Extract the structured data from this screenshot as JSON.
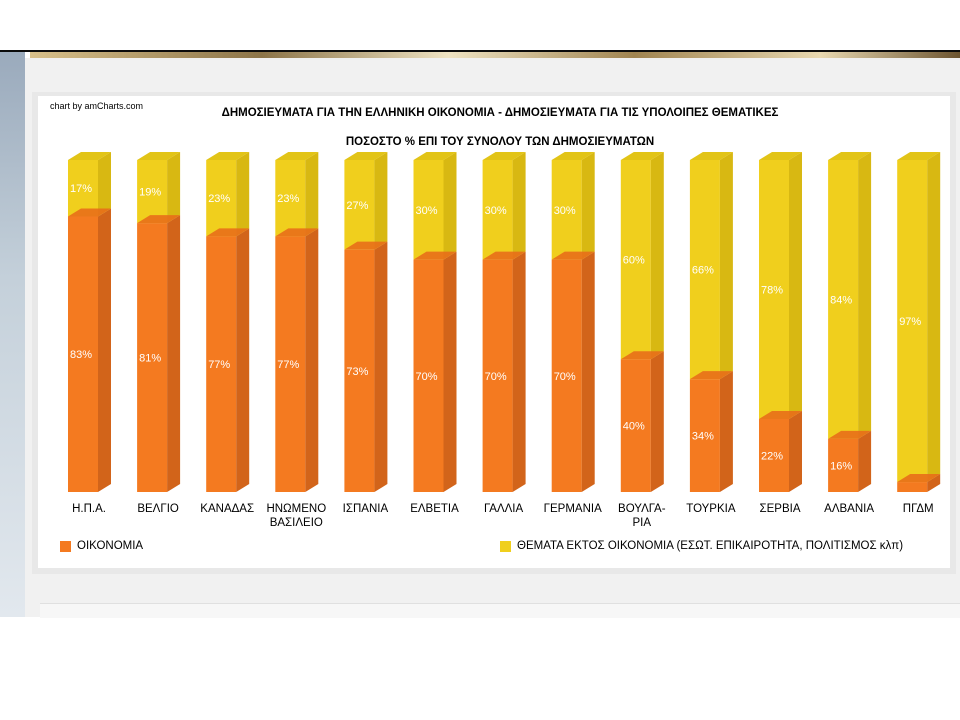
{
  "credit": "chart by amCharts.com",
  "title": "ΔΗΜΟΣΙΕΥΜΑΤΑ ΓΙΑ ΤΗΝ ΕΛΛΗΝΙΚΗ ΟΙΚΟΝΟΜΙΑ - ΔΗΜΟΣΙΕΥΜΑΤΑ ΓΙΑ ΤΙΣ ΥΠΟΛΟΙΠΕΣ ΘΕΜΑΤΙΚΕΣ",
  "subtitle": "ΠΟΣΟΣΤΟ % ΕΠΙ ΤΟΥ ΣΥΝΟΛΟΥ ΤΩΝ ΔΗΜΟΣΙΕΥΜΑΤΩΝ",
  "legend": {
    "economy": "ΟΙΚΟΝΟΜΙΑ",
    "other": "ΘΕΜΑΤΑ ΕΚΤΟΣ ΟΙΚΟΝΟΜΙΑ (ΕΣΩΤ. ΕΠΙΚΑΙΡΟΤΗΤΑ, ΠΟΛΙΤΙΣΜΟΣ κλπ)"
  },
  "chart_data": {
    "type": "bar",
    "stacked": true,
    "three_d": true,
    "categories": [
      "Η.Π.Α.",
      "ΒΕΛΓΙΟ",
      "ΚΑΝΑΔΑΣ",
      "ΗΝΩΜΕΝΟ ΒΑΣΙΛΕΙΟ",
      "ΙΣΠΑΝΙΑ",
      "ΕΛΒΕΤΙΑ",
      "ΓΑΛΛΙΑ",
      "ΓΕΡΜΑΝΙΑ",
      "ΒΟΥΛΓΑ- ΡΙΑ",
      "ΤΟΥΡΚΙΑ",
      "ΣΕΡΒΙΑ",
      "ΑΛΒΑΝΙΑ",
      "ΠΓΔΜ"
    ],
    "series": [
      {
        "name": "ΟΙΚΟΝΟΜΙΑ",
        "values": [
          83,
          81,
          77,
          77,
          73,
          70,
          70,
          70,
          40,
          34,
          22,
          16,
          3
        ],
        "labels": [
          "83%",
          "81%",
          "77%",
          "77%",
          "73%",
          "70%",
          "70%",
          "70%",
          "40%",
          "34%",
          "22%",
          "16%",
          ""
        ]
      },
      {
        "name": "ΘΕΜΑΤΑ ΕΚΤΟΣ ΟΙΚΟΝΟΜΙΑ (ΕΣΩΤ. ΕΠΙΚΑΙΡΟΤΗΤΑ, ΠΟΛΙΤΙΣΜΟΣ κλπ)",
        "values": [
          17,
          19,
          23,
          23,
          27,
          30,
          30,
          30,
          60,
          66,
          78,
          84,
          97
        ],
        "labels": [
          "17%",
          "19%",
          "23%",
          "23%",
          "27%",
          "30%",
          "30%",
          "30%",
          "60%",
          "66%",
          "78%",
          "84%",
          "97%"
        ]
      }
    ],
    "ylim": [
      0,
      100
    ],
    "grid": false,
    "legend_position": "bottom",
    "colors": {
      "economy": "#f47a20",
      "other": "#f0cf1d"
    }
  }
}
